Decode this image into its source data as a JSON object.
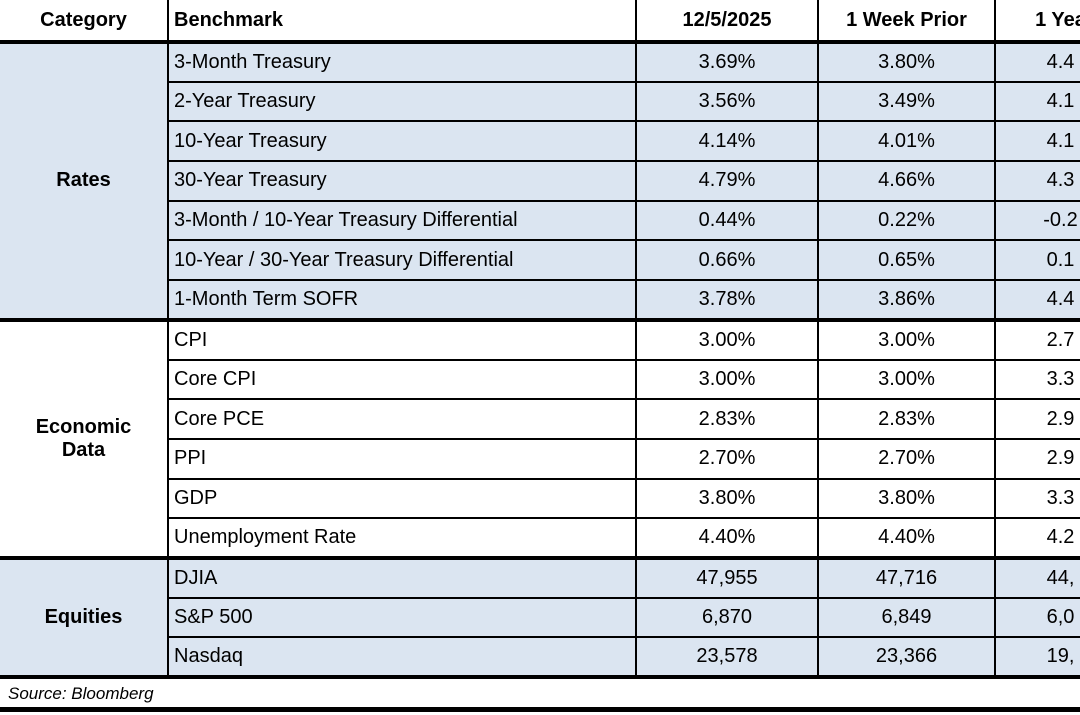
{
  "table": {
    "columns": [
      "Category",
      "Benchmark",
      "12/5/2025",
      "1 Week Prior",
      "1 Yea"
    ],
    "sections": [
      {
        "category": "Rates",
        "fill": "blue",
        "rows": [
          {
            "benchmark": "3-Month Treasury",
            "current": "3.69%",
            "week_prior": "3.80%",
            "year_prior": "4.4"
          },
          {
            "benchmark": "2-Year Treasury",
            "current": "3.56%",
            "week_prior": "3.49%",
            "year_prior": "4.1"
          },
          {
            "benchmark": "10-Year Treasury",
            "current": "4.14%",
            "week_prior": "4.01%",
            "year_prior": "4.1"
          },
          {
            "benchmark": "30-Year Treasury",
            "current": "4.79%",
            "week_prior": "4.66%",
            "year_prior": "4.3"
          },
          {
            "benchmark": "3-Month / 10-Year Treasury Differential",
            "current": "0.44%",
            "week_prior": "0.22%",
            "year_prior": "-0.2"
          },
          {
            "benchmark": "10-Year / 30-Year Treasury Differential",
            "current": "0.66%",
            "week_prior": "0.65%",
            "year_prior": "0.1"
          },
          {
            "benchmark": "1-Month Term SOFR",
            "current": "3.78%",
            "week_prior": "3.86%",
            "year_prior": "4.4"
          }
        ]
      },
      {
        "category": "Economic Data",
        "fill": "white",
        "rows": [
          {
            "benchmark": "CPI",
            "current": "3.00%",
            "week_prior": "3.00%",
            "year_prior": "2.7"
          },
          {
            "benchmark": "Core CPI",
            "current": "3.00%",
            "week_prior": "3.00%",
            "year_prior": "3.3"
          },
          {
            "benchmark": "Core PCE",
            "current": "2.83%",
            "week_prior": "2.83%",
            "year_prior": "2.9"
          },
          {
            "benchmark": "PPI",
            "current": "2.70%",
            "week_prior": "2.70%",
            "year_prior": "2.9"
          },
          {
            "benchmark": "GDP",
            "current": "3.80%",
            "week_prior": "3.80%",
            "year_prior": "3.3"
          },
          {
            "benchmark": "Unemployment Rate",
            "current": "4.40%",
            "week_prior": "4.40%",
            "year_prior": "4.2"
          }
        ]
      },
      {
        "category": "Equities",
        "fill": "blue",
        "rows": [
          {
            "benchmark": "DJIA",
            "current": "47,955",
            "week_prior": "47,716",
            "year_prior": "44,"
          },
          {
            "benchmark": "S&P 500",
            "current": "6,870",
            "week_prior": "6,849",
            "year_prior": "6,0"
          },
          {
            "benchmark": "Nasdaq",
            "current": "23,578",
            "week_prior": "23,366",
            "year_prior": "19,"
          }
        ]
      }
    ]
  },
  "source_note": "Source: Bloomberg",
  "colors": {
    "row_fill_blue": "#dbe5f1",
    "row_fill_white": "#ffffff",
    "border_black": "#000000"
  }
}
